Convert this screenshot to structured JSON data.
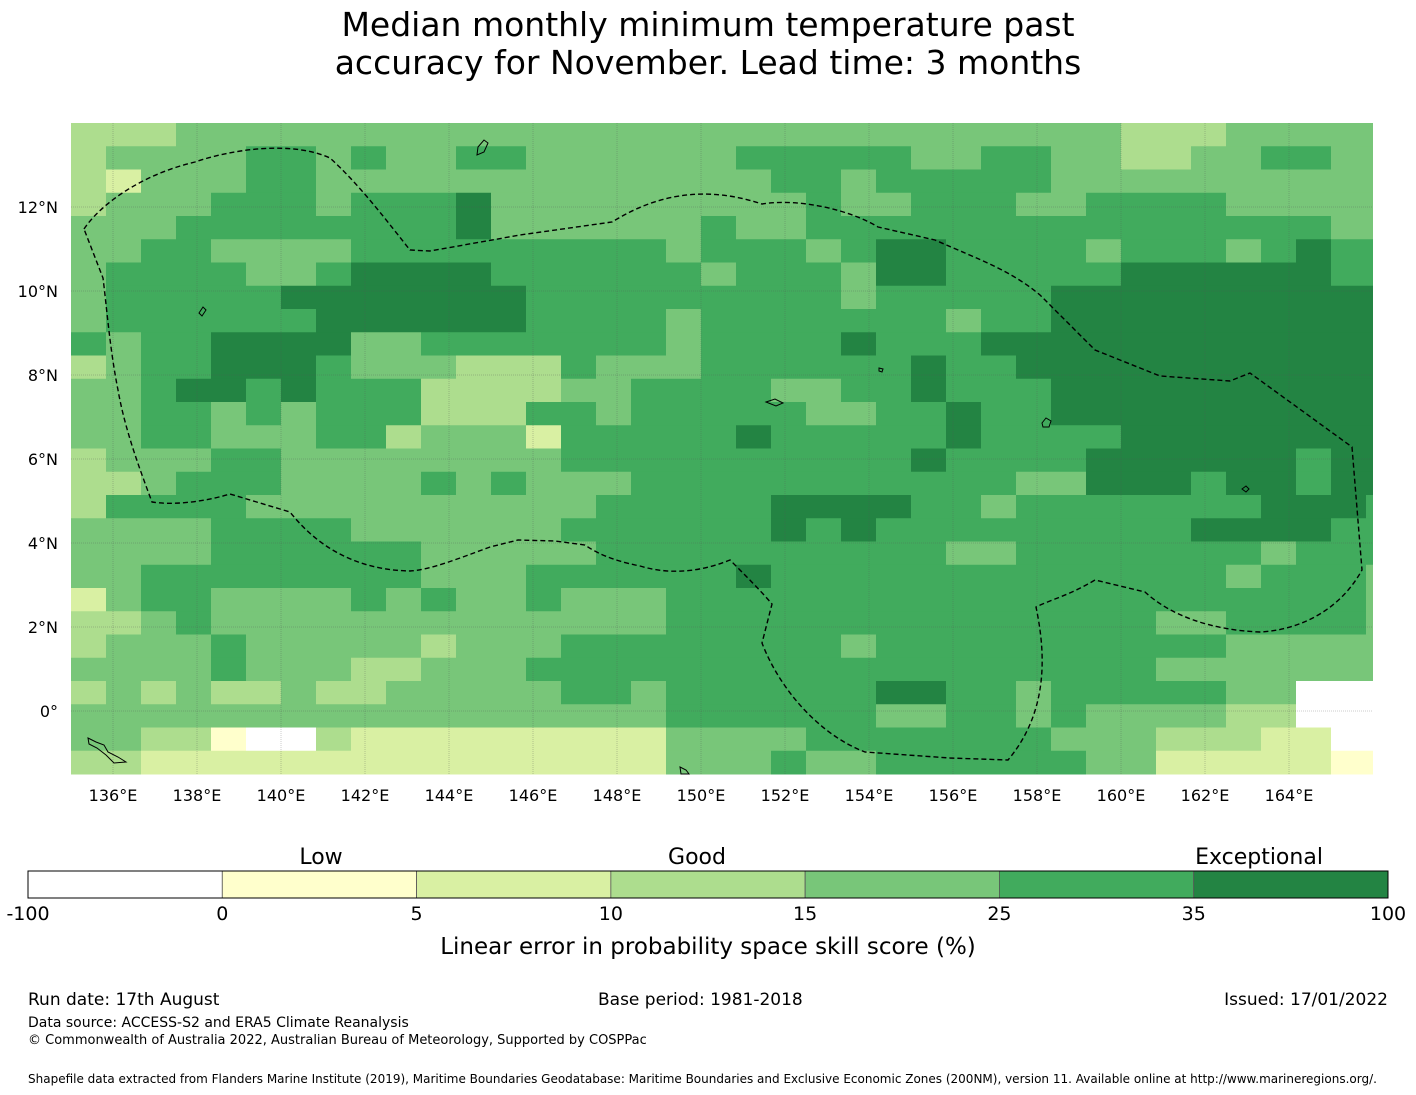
{
  "title": {
    "line1": "Median monthly minimum temperature past",
    "line2": "accuracy for November. Lead time: 3 months"
  },
  "map": {
    "x_ticks": [
      "136°E",
      "138°E",
      "140°E",
      "142°E",
      "144°E",
      "146°E",
      "148°E",
      "150°E",
      "152°E",
      "154°E",
      "156°E",
      "158°E",
      "160°E",
      "162°E",
      "164°E"
    ],
    "y_ticks": [
      "12°N",
      "10°N",
      "8°N",
      "6°N",
      "4°N",
      "2°N",
      "0°"
    ]
  },
  "legend": {
    "categories": [
      "Low",
      "Good",
      "Exceptional"
    ],
    "tick_labels": [
      "-100",
      "0",
      "5",
      "10",
      "15",
      "25",
      "35",
      "100"
    ],
    "colors": [
      "#ffffff",
      "#ffffcc",
      "#d9f0a3",
      "#addd8e",
      "#78c679",
      "#41ab5d",
      "#238443"
    ],
    "label": "Linear error in probability space skill score (%)"
  },
  "footer": {
    "run_date": "Run date: 17th August",
    "base_period": "Base period: 1981-2018",
    "issued": "Issued: 17/01/2022",
    "data_source": "Data source: ACCESS-S2 and ERA5 Climate Reanalysis",
    "copyright": "© Commonwealth of Australia 2022, Australian Bureau of Meteorology, Supported by COSPPac",
    "shapefile": "Shapefile data extracted from Flanders Marine Institute (2019), Maritime Boundaries Geodatabase: Maritime Boundaries and Exclusive Economic Zones (200NM), version 11. Available online at http://www.marineregions.org/."
  }
}
